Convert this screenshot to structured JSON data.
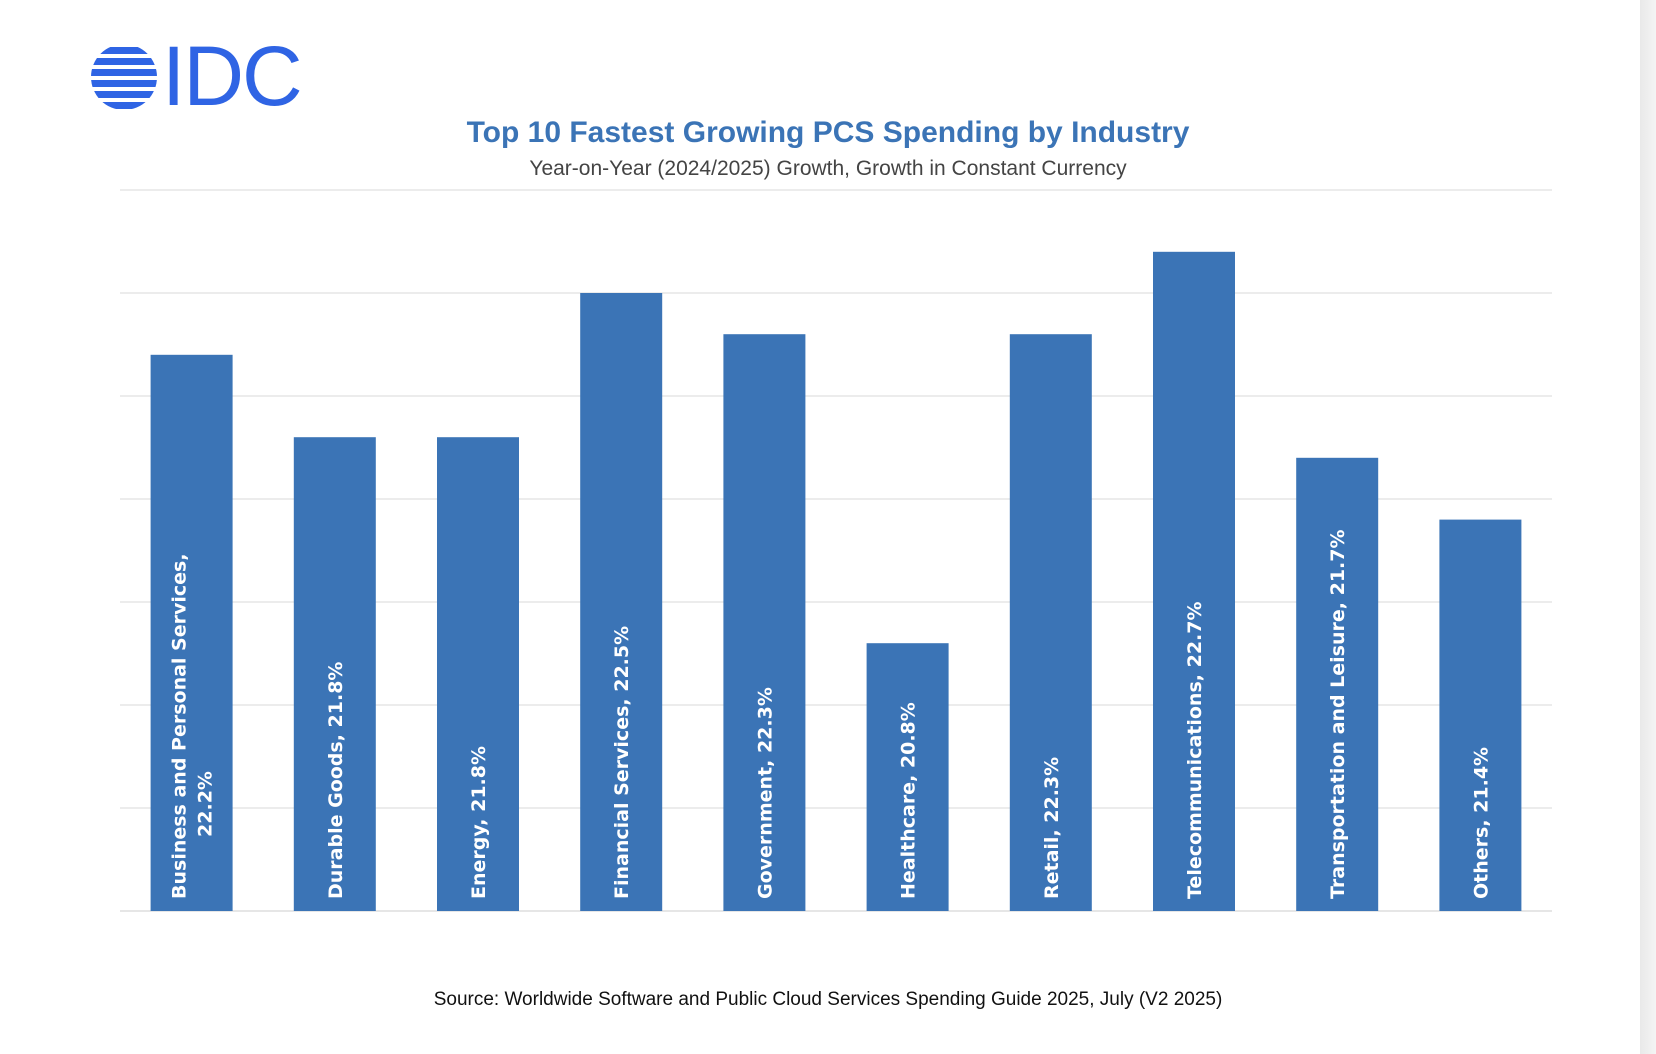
{
  "logo": {
    "text": "IDC"
  },
  "colors": {
    "bar": "#3b74b6",
    "title": "#3b74b6",
    "logo": "#2f64e4",
    "grid": "#e6e6e6"
  },
  "chart_data": {
    "type": "bar",
    "title": "Top 10 Fastest Growing PCS Spending by Industry",
    "subtitle": "Year-on-Year (2024/2025) Growth, Growth in Constant Currency",
    "source": "Source: Worldwide Software and Public Cloud Services Spending Guide 2025, July (V2 2025)",
    "categories": [
      "Business and Personal Services",
      "Durable Goods",
      "Energy",
      "Financial Services",
      "Government",
      "Healthcare",
      "Retail",
      "Telecommunications",
      "Transportation and Leisure",
      "Others"
    ],
    "values": [
      22.2,
      21.8,
      21.8,
      22.5,
      22.3,
      20.8,
      22.3,
      22.7,
      21.7,
      21.4
    ],
    "labels": [
      [
        "Business and Personal Services,",
        "22.2%"
      ],
      [
        "Durable Goods, 21.8%"
      ],
      [
        "Energy, 21.8%"
      ],
      [
        "Financial Services, 22.5%"
      ],
      [
        "Government, 22.3%"
      ],
      [
        "Healthcare, 20.8%"
      ],
      [
        "Retail, 22.3%"
      ],
      [
        "Telecommunications, 22.7%"
      ],
      [
        "Transportation and Leisure, 21.7%"
      ],
      [
        "Others, 21.4%"
      ]
    ],
    "ylim": [
      19.5,
      23.0
    ],
    "grid": true,
    "legend": "none",
    "value_labels": "inside bars, rotated vertical"
  }
}
